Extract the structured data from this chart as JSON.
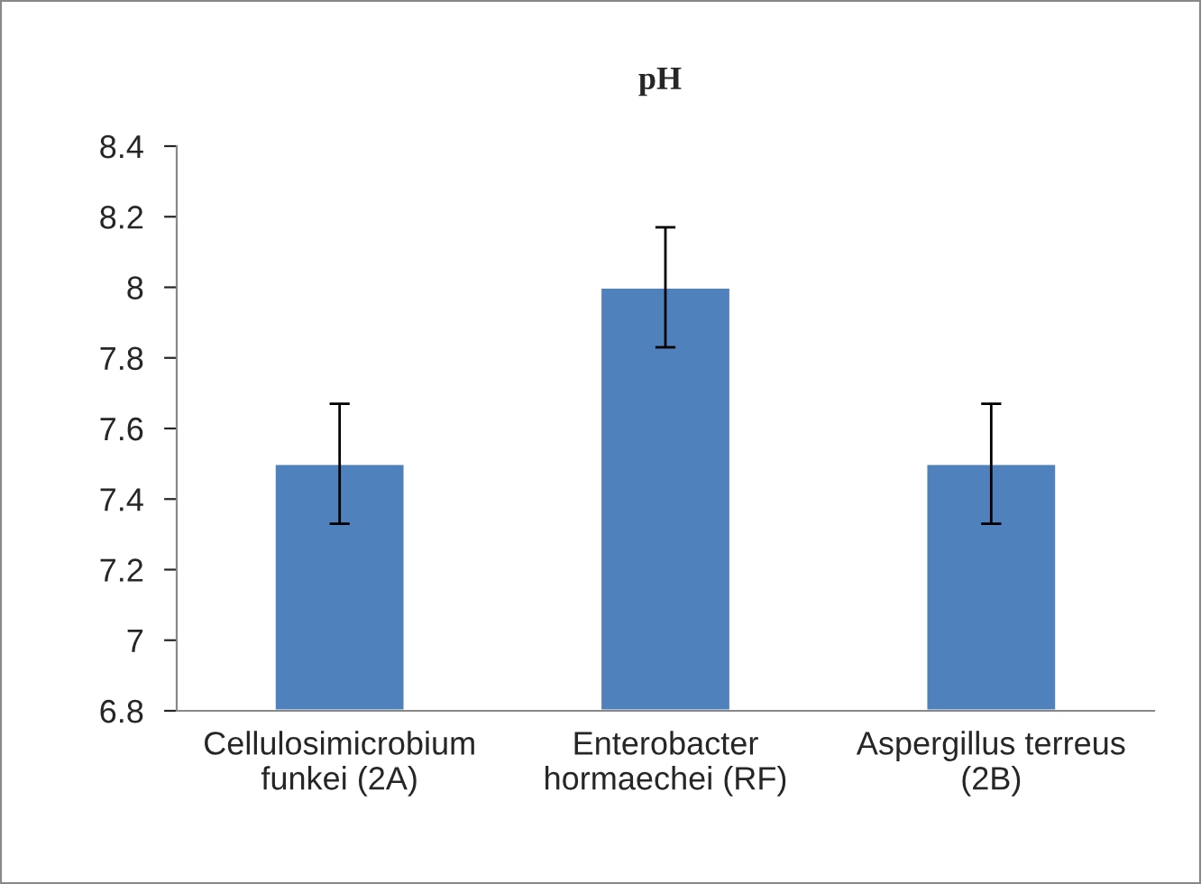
{
  "chart_data": {
    "type": "bar",
    "title": "pH",
    "categories": [
      "Cellulosimicrobium\nfunkei (2A)",
      "Enterobacter\nhormaechei (RF)",
      "Aspergillus terreus\n(2B)"
    ],
    "values": [
      7.5,
      8.0,
      7.5
    ],
    "errors": [
      0.17,
      0.17,
      0.17
    ],
    "color": "#4f81bd",
    "ylim": [
      6.8,
      8.4
    ],
    "yticks": [
      {
        "value": 6.8,
        "label": "6.8"
      },
      {
        "value": 7,
        "label": "7"
      },
      {
        "value": 7.2,
        "label": "7.2"
      },
      {
        "value": 7.4,
        "label": "7.4"
      },
      {
        "value": 7.6,
        "label": "7.6"
      },
      {
        "value": 7.8,
        "label": "7.8"
      },
      {
        "value": 8,
        "label": "8"
      },
      {
        "value": 8.2,
        "label": "8.2"
      },
      {
        "value": 8.4,
        "label": "8.4"
      }
    ],
    "grid": false
  }
}
